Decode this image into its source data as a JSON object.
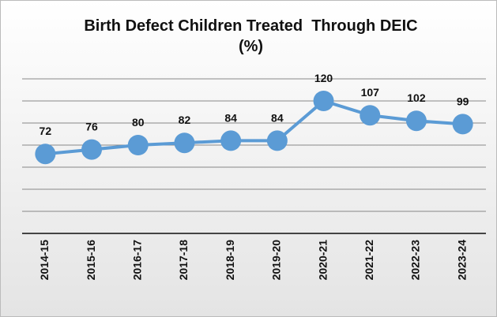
{
  "chart_data": {
    "type": "line",
    "title": "Birth Defect Children Treated  Through DEIC (%)",
    "categories": [
      "2014-15",
      "2015-16",
      "2016-17",
      "2017-18",
      "2018-19",
      "2019-20",
      "2020-21",
      "2021-22",
      "2022-23",
      "2023-24"
    ],
    "series": [
      {
        "name": "DEIC",
        "color": "#5b9bd5",
        "values": [
          72,
          76,
          80,
          82,
          84,
          84,
          120,
          107,
          102,
          99
        ]
      }
    ],
    "ylim": [
      0,
      160
    ],
    "yticks": [
      0,
      20,
      40,
      60,
      80,
      100,
      120,
      140
    ],
    "grid": true
  }
}
